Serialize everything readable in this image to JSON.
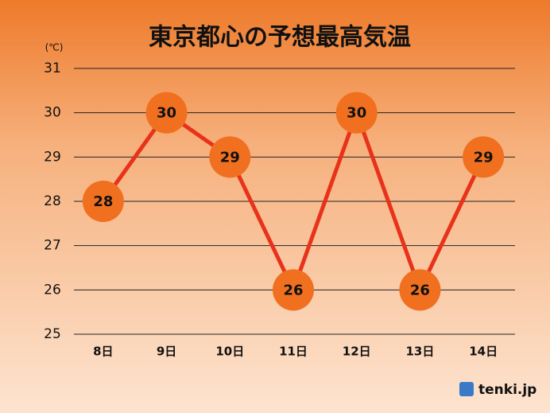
{
  "chart_data": {
    "type": "line",
    "title": "東京都心の予想最高気温",
    "unit": "(℃)",
    "categories": [
      "8日",
      "9日",
      "10日",
      "11日",
      "12日",
      "13日",
      "14日"
    ],
    "values": [
      28,
      30,
      29,
      26,
      30,
      26,
      29
    ],
    "color": "#e8321a",
    "marker_color": "#f07020",
    "ylim": [
      25,
      31
    ],
    "yticks": [
      25,
      26,
      27,
      28,
      29,
      30,
      31
    ],
    "grid": true,
    "brand": "tenki.jp"
  }
}
